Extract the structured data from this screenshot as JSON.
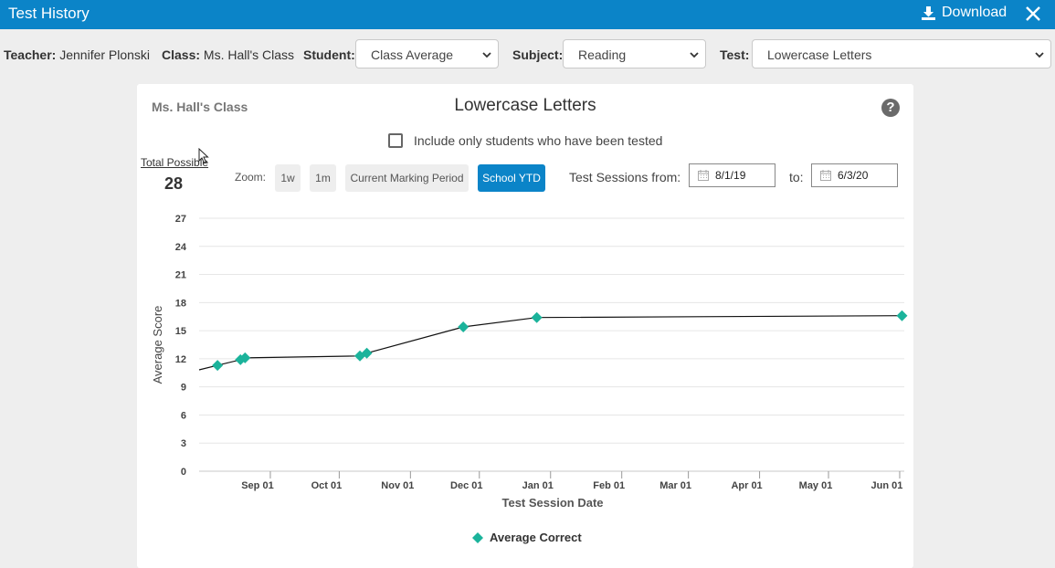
{
  "window": {
    "title": "Test History",
    "download_label": "Download"
  },
  "filters": {
    "teacher_label": "Teacher:",
    "teacher": "Jennifer Plonski",
    "class_label": "Class:",
    "class": "Ms. Hall's Class",
    "student_label": "Student:",
    "student": "Class Average",
    "subject_label": "Subject:",
    "subject": "Reading",
    "test_label": "Test:",
    "test": "Lowercase Letters"
  },
  "card": {
    "class_name": "Ms. Hall's Class",
    "test_name": "Lowercase Letters",
    "help_glyph": "?",
    "include_tested_label": "Include only students who have been tested",
    "total_possible_label": "Total Possible",
    "total_possible": "28",
    "zoom_label": "Zoom:",
    "zoom_options": [
      "1w",
      "1m",
      "Current Marking Period",
      "School YTD"
    ],
    "zoom_selected": "School YTD",
    "sessions_from_label": "Test Sessions from:",
    "from_date": "8/1/19",
    "to_label": "to:",
    "to_date": "6/3/20"
  },
  "colors": {
    "accent": "#0b84c8",
    "marker": "#1bb39b"
  },
  "chart_data": {
    "type": "line",
    "xlabel": "Test Session Date",
    "ylabel": "Average Score",
    "ylim": [
      0,
      27
    ],
    "yticks": [
      0,
      3,
      6,
      9,
      12,
      15,
      18,
      21,
      24,
      27
    ],
    "xlim": [
      "2019-08-01",
      "2020-06-03"
    ],
    "xticks": [
      {
        "date": "2019-09-01",
        "label": "Sep 01"
      },
      {
        "date": "2019-10-01",
        "label": "Oct 01"
      },
      {
        "date": "2019-11-01",
        "label": "Nov 01"
      },
      {
        "date": "2019-12-01",
        "label": "Dec 01"
      },
      {
        "date": "2020-01-01",
        "label": "Jan 01"
      },
      {
        "date": "2020-02-01",
        "label": "Feb 01"
      },
      {
        "date": "2020-03-01",
        "label": "Mar 01"
      },
      {
        "date": "2020-04-01",
        "label": "Apr 01"
      },
      {
        "date": "2020-05-01",
        "label": "May 01"
      },
      {
        "date": "2020-06-01",
        "label": "Jun 01"
      }
    ],
    "legend": "bottom-center",
    "series": [
      {
        "name": "Average Correct",
        "points": [
          {
            "x": "2019-08-09",
            "y": 11.3
          },
          {
            "x": "2019-08-19",
            "y": 11.9
          },
          {
            "x": "2019-08-21",
            "y": 12.1
          },
          {
            "x": "2019-10-10",
            "y": 12.3
          },
          {
            "x": "2019-10-13",
            "y": 12.6
          },
          {
            "x": "2019-11-24",
            "y": 15.4
          },
          {
            "x": "2019-12-26",
            "y": 16.4
          },
          {
            "x": "2020-06-02",
            "y": 16.6
          }
        ]
      }
    ]
  }
}
